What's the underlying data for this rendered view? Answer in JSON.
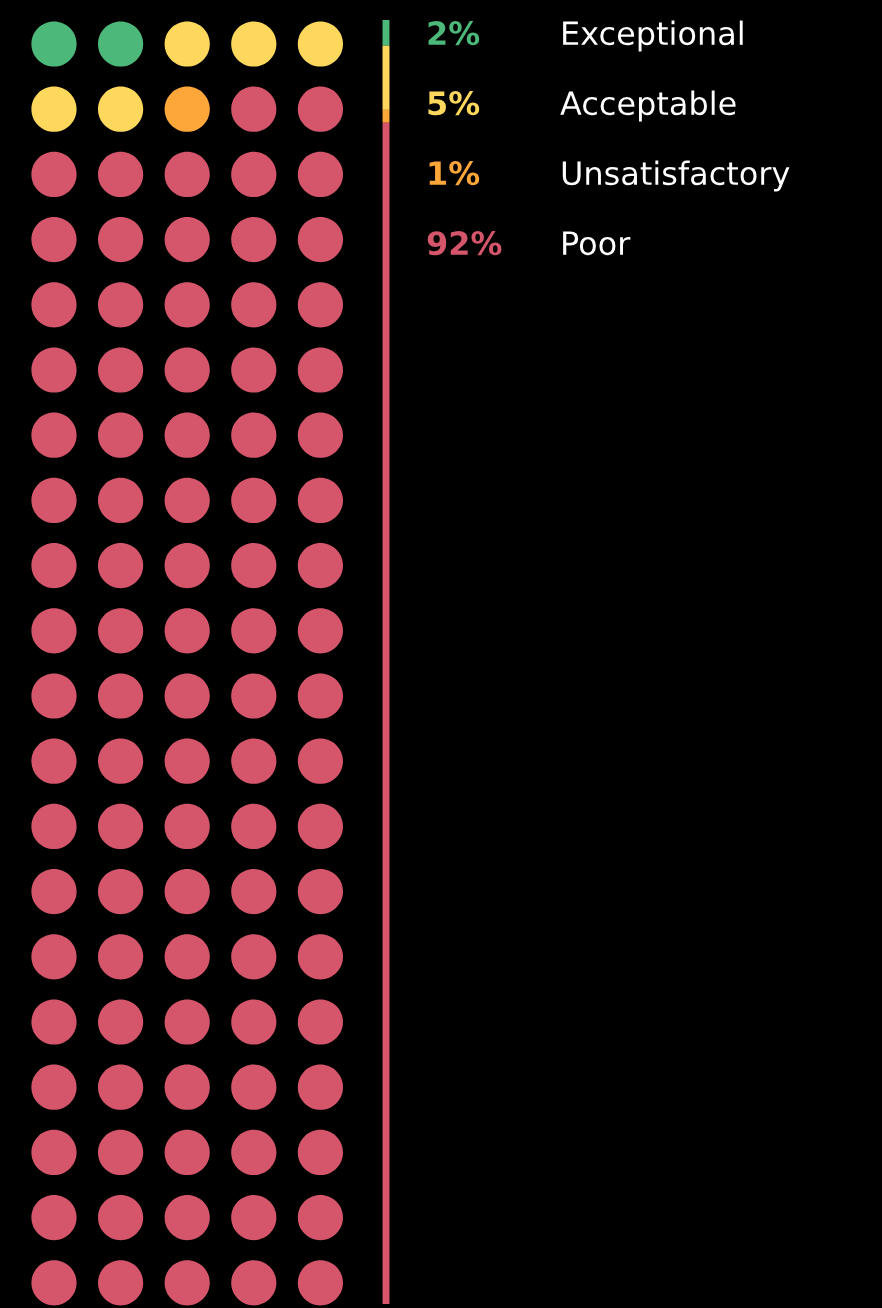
{
  "chart_data": {
    "type": "other",
    "categories": [
      "Exceptional",
      "Acceptable",
      "Unsatisfactory",
      "Poor"
    ],
    "values": [
      2,
      5,
      1,
      92
    ],
    "colors": [
      "#4cb97a",
      "#fdd85d",
      "#fda63a",
      "#d5566b"
    ],
    "value_labels": [
      "2%",
      "5%",
      "1%",
      "92%"
    ]
  }
}
